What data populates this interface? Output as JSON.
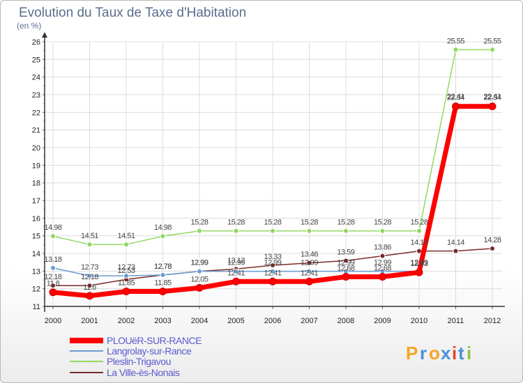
{
  "chart_data": {
    "type": "line",
    "title": "Evolution du Taux de Taxe d'Habitation",
    "ylabel": "(en %)",
    "x": [
      "2000",
      "2001",
      "2002",
      "2003",
      "2004",
      "2005",
      "2006",
      "2007",
      "2008",
      "2009",
      "2010",
      "2011",
      "2012"
    ],
    "ylim": [
      11,
      26
    ],
    "yticks": [
      "11",
      "12",
      "13",
      "14",
      "15",
      "16",
      "17",
      "18",
      "19",
      "20",
      "21",
      "22",
      "23",
      "24",
      "25",
      "26"
    ],
    "series": [
      {
        "name": "PLOUëR-SUR-RANCE",
        "color": "#ff0000",
        "values": [
          11.8,
          11.6,
          11.85,
          11.85,
          12.05,
          12.41,
          12.41,
          12.41,
          12.68,
          12.68,
          12.93,
          22.34,
          22.34
        ],
        "labels": [
          "11.8",
          "11.6",
          "11.85",
          "11.85",
          "12.05",
          "12.41",
          "12.41",
          "12.41",
          "12.68",
          "12.68",
          "12.93",
          "22.34",
          "22.34"
        ]
      },
      {
        "name": "Langrolay-sur-Rance",
        "color": "#6b9bd1",
        "values": [
          13.18,
          12.73,
          12.73,
          12.78,
          12.99,
          12.99,
          12.99,
          12.99,
          12.99,
          12.99,
          12.99,
          22.41,
          22.41
        ],
        "labels": [
          "13.18",
          "12.73",
          "12.73",
          "12.78",
          "12.99",
          "12.99",
          "12.99",
          "12.99",
          "12.99",
          "12.99",
          "12.99",
          "22.41",
          "22.41"
        ]
      },
      {
        "name": "Pleslin-Trigavou",
        "color": "#90d860",
        "values": [
          14.98,
          14.51,
          14.51,
          14.98,
          15.28,
          15.28,
          15.28,
          15.28,
          15.28,
          15.28,
          15.28,
          25.55,
          25.55
        ],
        "labels": [
          "14.98",
          "14.51",
          "14.51",
          "14.98",
          "15.28",
          "15.28",
          "15.28",
          "15.28",
          "15.28",
          "15.28",
          "15.28",
          "25.55",
          "25.55"
        ]
      },
      {
        "name": "La Ville-ès-Nonais",
        "color": "#7a2a2a",
        "values": [
          12.18,
          12.18,
          12.53,
          12.78,
          12.99,
          13.12,
          13.33,
          13.46,
          13.59,
          13.86,
          14.14,
          14.14,
          14.28
        ],
        "labels": [
          "12.18",
          "12.18",
          "12.53",
          "12.78",
          "12.99",
          "13.12",
          "13.33",
          "13.46",
          "13.59",
          "13.86",
          "14.14",
          "14.14",
          "14.28"
        ]
      }
    ],
    "legend_position": "bottom-left"
  },
  "branding": {
    "logo_text": "Proxiti",
    "letters": [
      "P",
      "r",
      "o",
      "x",
      "i",
      "t",
      "i"
    ],
    "colors": [
      "#f5a623",
      "#4a90d9",
      "#f5a623",
      "#4a90d9",
      "#e8452c",
      "#4a90d9",
      "#8bc34a"
    ]
  }
}
